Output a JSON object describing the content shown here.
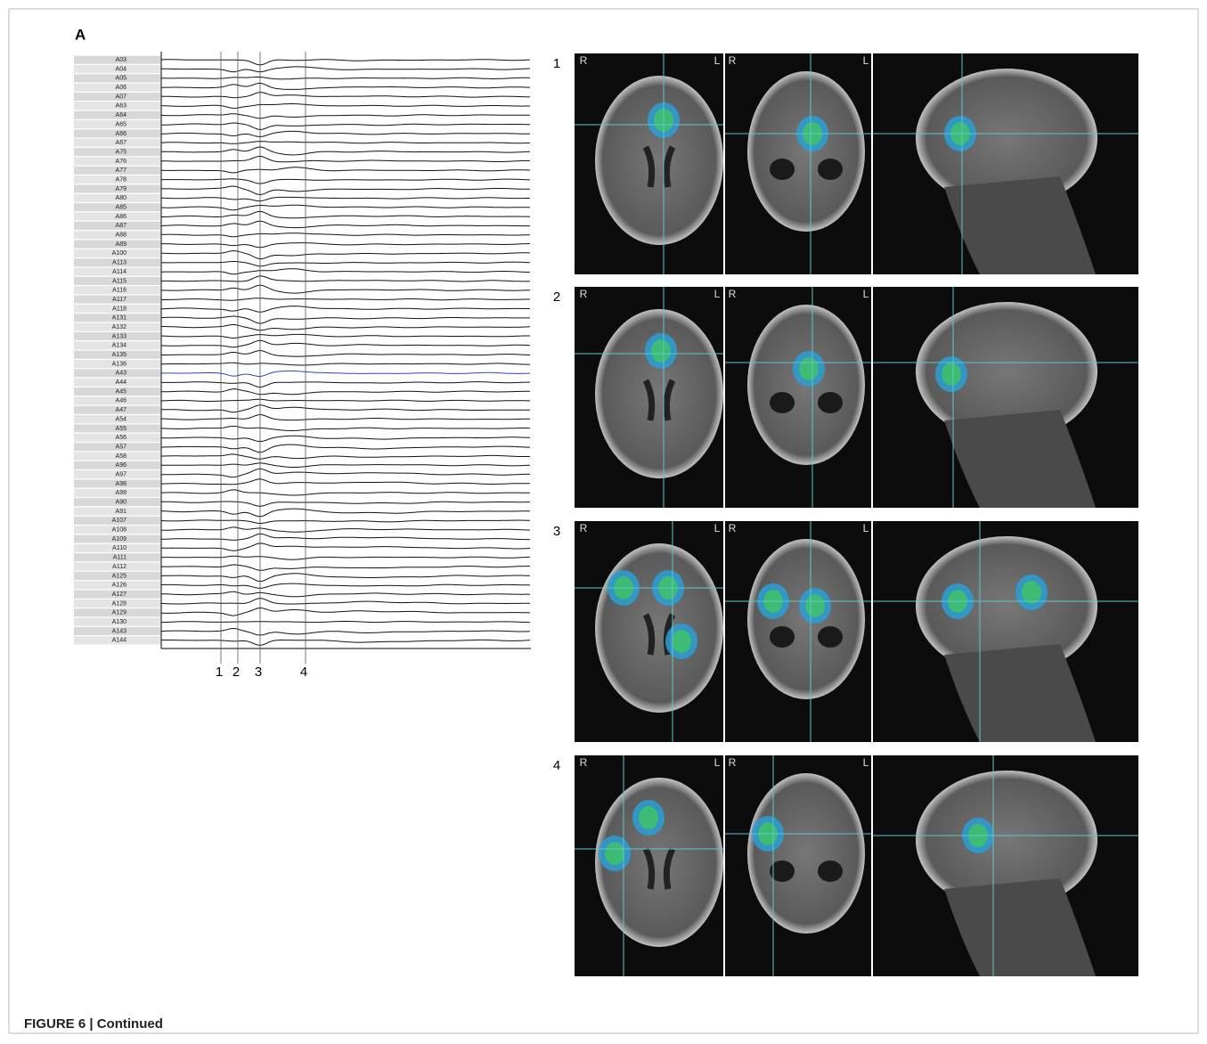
{
  "panel_letter": "A",
  "traces": {
    "channels": [
      "A03",
      "A04",
      "A05",
      "A06",
      "A07",
      "A63",
      "A64",
      "A65",
      "A66",
      "A67",
      "A75",
      "A76",
      "A77",
      "A78",
      "A79",
      "A80",
      "A85",
      "A86",
      "A87",
      "A88",
      "A89",
      "A100",
      "A113",
      "A114",
      "A115",
      "A116",
      "A117",
      "A118",
      "A131",
      "A132",
      "A133",
      "A134",
      "A135",
      "A136",
      "A43",
      "A44",
      "A45",
      "A46",
      "A47",
      "A54",
      "A55",
      "A56",
      "A57",
      "A58",
      "A96",
      "A97",
      "A98",
      "A99",
      "A90",
      "A91",
      "A107",
      "A108",
      "A109",
      "A110",
      "A111",
      "A112",
      "A125",
      "A126",
      "A127",
      "A128",
      "A129",
      "A130",
      "A143",
      "A144"
    ],
    "markers": [
      "1",
      "2",
      "3",
      "4"
    ]
  },
  "panels": [
    {
      "number": "1",
      "labels": [
        "R",
        "L",
        "R",
        "L"
      ]
    },
    {
      "number": "2",
      "labels": [
        "R",
        "L",
        "R",
        "L"
      ]
    },
    {
      "number": "3",
      "labels": [
        "R",
        "L",
        "R",
        "L"
      ]
    },
    {
      "number": "4",
      "labels": [
        "R",
        "L",
        "R",
        "L"
      ]
    }
  ],
  "caption": "FIGURE 6 | Continued"
}
